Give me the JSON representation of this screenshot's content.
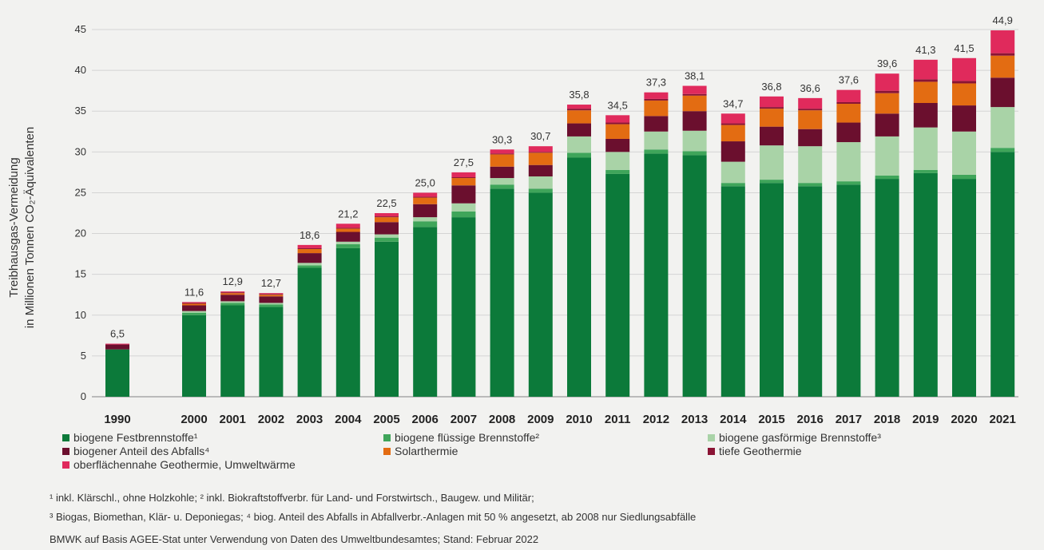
{
  "chart_data": {
    "type": "bar",
    "stacked": true,
    "ylabel_lines": [
      "Treibhausgas-Vermeidung",
      "in Millionen Tonnen CO₂-Äquivalenten"
    ],
    "ylim": [
      0,
      45
    ],
    "yticks": [
      0,
      5,
      10,
      15,
      20,
      25,
      30,
      35,
      40,
      45
    ],
    "grid": true,
    "legend_position": "bottom",
    "categories": [
      "1990",
      "2000",
      "2001",
      "2002",
      "2003",
      "2004",
      "2005",
      "2006",
      "2007",
      "2008",
      "2009",
      "2010",
      "2011",
      "2012",
      "2013",
      "2014",
      "2015",
      "2016",
      "2017",
      "2018",
      "2019",
      "2020",
      "2021"
    ],
    "totals": [
      6.5,
      11.6,
      12.9,
      12.7,
      18.6,
      21.2,
      22.5,
      25.0,
      27.5,
      30.3,
      30.7,
      35.8,
      34.5,
      37.3,
      38.1,
      34.7,
      36.8,
      36.6,
      37.6,
      39.6,
      41.3,
      41.5,
      44.9
    ],
    "total_labels": [
      "6,5",
      "11,6",
      "12,9",
      "12,7",
      "18,6",
      "21,2",
      "22,5",
      "25,0",
      "27,5",
      "30,3",
      "30,7",
      "35,8",
      "34,5",
      "37,3",
      "38,1",
      "34,7",
      "36,8",
      "36,6",
      "37,6",
      "39,6",
      "41,3",
      "41,5",
      "44,9"
    ],
    "series": [
      {
        "name": "biogene Festbrennstoffe¹",
        "color": "#0c7a3a",
        "values": [
          5.8,
          10.0,
          11.2,
          11.0,
          15.8,
          18.2,
          19.0,
          20.8,
          22.0,
          25.5,
          25.0,
          29.3,
          27.3,
          29.8,
          29.6,
          25.8,
          26.2,
          25.8,
          26.0,
          26.7,
          27.4,
          26.7,
          30.0
        ]
      },
      {
        "name": "biogene flüssige Brennstoffe²",
        "color": "#3fa55a",
        "values": [
          0.0,
          0.3,
          0.3,
          0.3,
          0.3,
          0.5,
          0.5,
          0.7,
          0.7,
          0.5,
          0.5,
          0.6,
          0.5,
          0.5,
          0.5,
          0.4,
          0.4,
          0.4,
          0.4,
          0.4,
          0.4,
          0.5,
          0.5
        ]
      },
      {
        "name": "biogene gasförmige Brennstoffe³",
        "color": "#a9d3a7",
        "values": [
          0.0,
          0.2,
          0.2,
          0.2,
          0.3,
          0.3,
          0.4,
          0.5,
          1.0,
          0.8,
          1.5,
          2.0,
          2.2,
          2.2,
          2.5,
          2.6,
          4.2,
          4.5,
          4.8,
          4.8,
          5.2,
          5.3,
          5.0
        ]
      },
      {
        "name": "biogener Anteil des Abfalls⁴",
        "color": "#6b0f2e",
        "values": [
          0.6,
          0.7,
          0.8,
          0.8,
          1.2,
          1.2,
          1.5,
          1.6,
          2.2,
          1.4,
          1.4,
          1.6,
          1.6,
          1.9,
          2.4,
          2.5,
          2.3,
          2.1,
          2.4,
          2.8,
          3.0,
          3.2,
          3.6
        ]
      },
      {
        "name": "Solarthermie",
        "color": "#e36c12",
        "values": [
          0.0,
          0.2,
          0.2,
          0.2,
          0.5,
          0.4,
          0.6,
          0.8,
          0.9,
          1.5,
          1.5,
          1.6,
          1.8,
          1.9,
          1.9,
          2.0,
          2.2,
          2.3,
          2.3,
          2.5,
          2.6,
          2.7,
          2.7
        ]
      },
      {
        "name": "tiefe Geothermie",
        "color": "#8a1434",
        "values": [
          0.0,
          0.1,
          0.1,
          0.1,
          0.1,
          0.1,
          0.1,
          0.1,
          0.1,
          0.1,
          0.1,
          0.2,
          0.2,
          0.2,
          0.2,
          0.2,
          0.2,
          0.2,
          0.2,
          0.3,
          0.3,
          0.3,
          0.3
        ]
      },
      {
        "name": "oberflächennahe Geothermie, Umweltwärme",
        "color": "#e02a5c",
        "values": [
          0.1,
          0.1,
          0.1,
          0.1,
          0.4,
          0.5,
          0.4,
          0.5,
          0.6,
          0.5,
          0.7,
          0.5,
          0.9,
          0.8,
          1.0,
          1.2,
          1.3,
          1.3,
          1.5,
          2.1,
          2.4,
          2.8,
          2.8
        ]
      }
    ]
  },
  "footnotes": {
    "line1": "¹ inkl. Klärschl., ohne Holzkohle; ² inkl. Biokraftstoffverbr. für Land- und Forstwirtsch., Baugew. und Militär;",
    "line2": "³ Biogas, Biomethan, Klär- u. Deponiegas; ⁴ biog. Anteil des Abfalls in Abfallverbr.-Anlagen mit 50 % angesetzt, ab 2008 nur Siedlungsabfälle",
    "source": "BMWK auf Basis AGEE-Stat unter Verwendung von Daten des Umweltbundesamtes; Stand: Februar 2022"
  }
}
